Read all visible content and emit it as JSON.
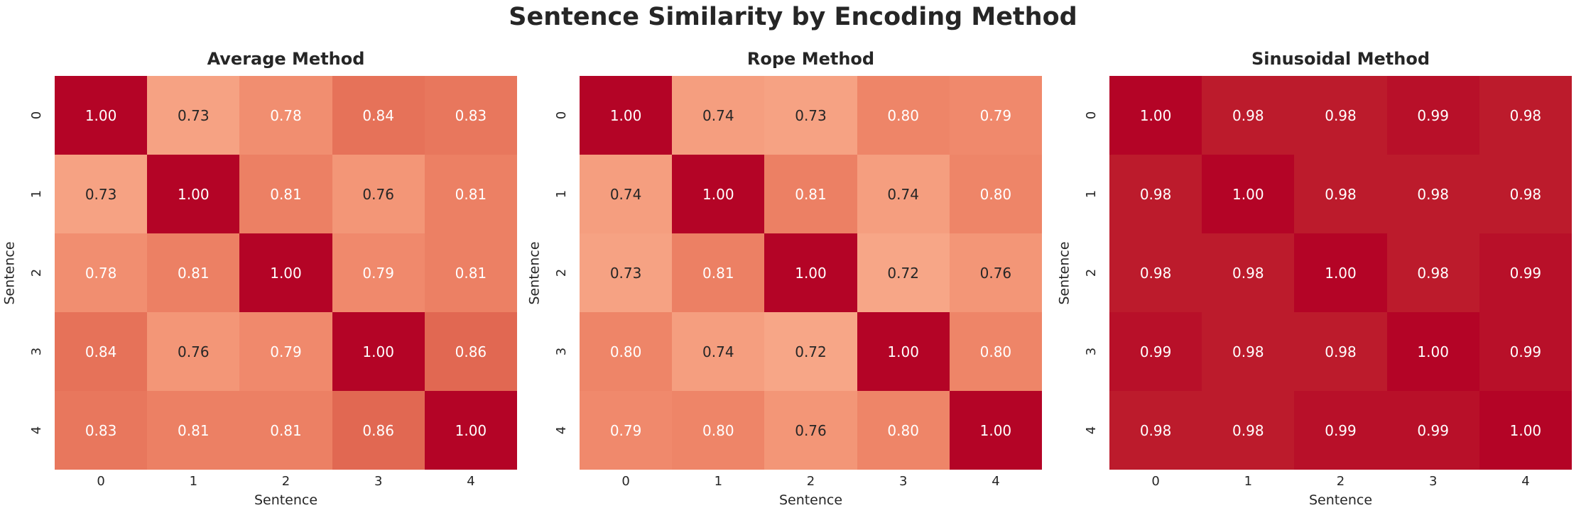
{
  "figure": {
    "title": "Sentence Similarity by Encoding Method",
    "background_color": "#ffffff",
    "text_color": "#262626"
  },
  "chart_data": [
    {
      "type": "heatmap",
      "title": "Average Method",
      "xlabel": "Sentence",
      "ylabel": "Sentence",
      "x_ticks": [
        "0",
        "1",
        "2",
        "3",
        "4"
      ],
      "y_ticks": [
        "0",
        "1",
        "2",
        "3",
        "4"
      ],
      "colormap": "coolwarm",
      "vmin": 0,
      "vmax": 1,
      "matrix": [
        [
          1.0,
          0.73,
          0.78,
          0.84,
          0.83
        ],
        [
          0.73,
          1.0,
          0.81,
          0.76,
          0.81
        ],
        [
          0.78,
          0.81,
          1.0,
          0.79,
          0.81
        ],
        [
          0.84,
          0.76,
          0.79,
          1.0,
          0.86
        ],
        [
          0.83,
          0.81,
          0.81,
          0.86,
          1.0
        ]
      ]
    },
    {
      "type": "heatmap",
      "title": "Rope Method",
      "xlabel": "Sentence",
      "ylabel": "Sentence",
      "x_ticks": [
        "0",
        "1",
        "2",
        "3",
        "4"
      ],
      "y_ticks": [
        "0",
        "1",
        "2",
        "3",
        "4"
      ],
      "colormap": "coolwarm",
      "vmin": 0,
      "vmax": 1,
      "matrix": [
        [
          1.0,
          0.74,
          0.73,
          0.8,
          0.79
        ],
        [
          0.74,
          1.0,
          0.81,
          0.74,
          0.8
        ],
        [
          0.73,
          0.81,
          1.0,
          0.72,
          0.76
        ],
        [
          0.8,
          0.74,
          0.72,
          1.0,
          0.8
        ],
        [
          0.79,
          0.8,
          0.76,
          0.8,
          1.0
        ]
      ]
    },
    {
      "type": "heatmap",
      "title": "Sinusoidal Method",
      "xlabel": "Sentence",
      "ylabel": "Sentence",
      "x_ticks": [
        "0",
        "1",
        "2",
        "3",
        "4"
      ],
      "y_ticks": [
        "0",
        "1",
        "2",
        "3",
        "4"
      ],
      "colormap": "coolwarm",
      "vmin": 0,
      "vmax": 1,
      "matrix": [
        [
          1.0,
          0.98,
          0.98,
          0.99,
          0.98
        ],
        [
          0.98,
          1.0,
          0.98,
          0.98,
          0.98
        ],
        [
          0.98,
          0.98,
          1.0,
          0.98,
          0.99
        ],
        [
          0.99,
          0.98,
          0.98,
          1.0,
          0.99
        ],
        [
          0.98,
          0.98,
          0.99,
          0.99,
          1.0
        ]
      ]
    }
  ],
  "style": {
    "value_colors": {
      "0.72": "#f7a687",
      "0.73": "#f6a283",
      "0.74": "#f59e7f",
      "0.76": "#f39677",
      "0.78": "#f18e70",
      "0.79": "#f0896c",
      "0.80": "#ee8568",
      "0.81": "#ec8064",
      "0.83": "#e8775d",
      "0.84": "#e67259",
      "0.86": "#e16852",
      "0.98": "#bc1b2c",
      "0.99": "#b81029",
      "1.00": "#b40426"
    },
    "dark_text_color": "#262626",
    "light_text_color": "#ffffff",
    "dark_text_max_value": 0.77
  }
}
